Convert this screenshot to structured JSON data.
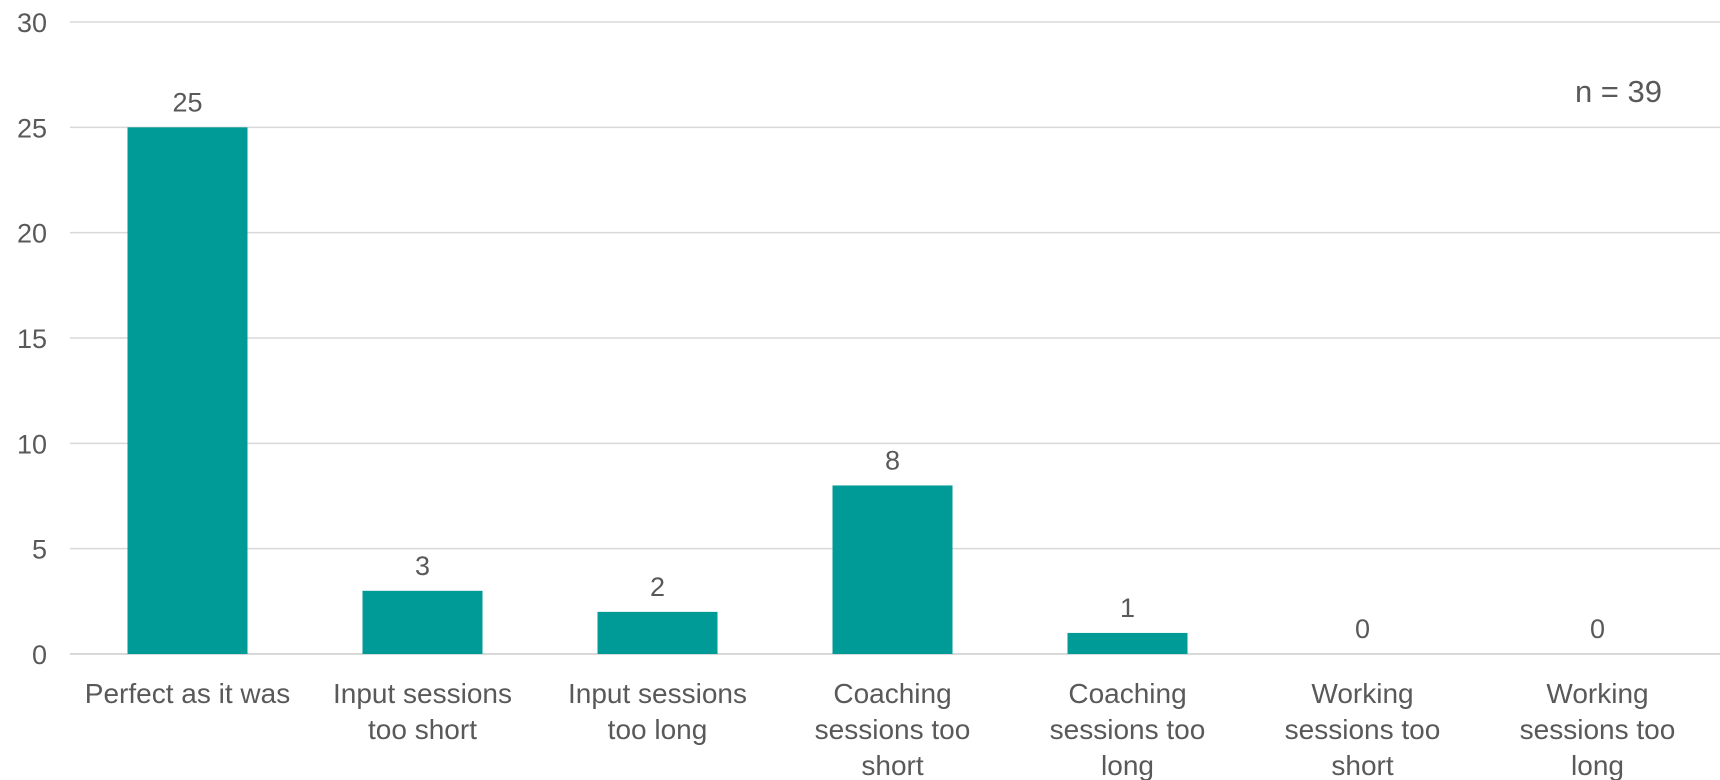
{
  "chart_data": {
    "type": "bar",
    "title": "",
    "xlabel": "",
    "ylabel": "",
    "categories": [
      "Perfect as it was",
      "Input sessions too short",
      "Input sessions too long",
      "Coaching sessions too short",
      "Coaching sessions too long",
      "Working sessions too short",
      "Working sessions too long"
    ],
    "category_lines": [
      [
        "Perfect as it was"
      ],
      [
        "Input sessions",
        "too short"
      ],
      [
        "Input sessions",
        "too long"
      ],
      [
        "Coaching",
        "sessions too",
        "short"
      ],
      [
        "Coaching",
        "sessions too",
        "long"
      ],
      [
        "Working",
        "sessions too",
        "short"
      ],
      [
        "Working",
        "sessions too",
        "long"
      ]
    ],
    "values": [
      25,
      3,
      2,
      8,
      1,
      0,
      0
    ],
    "ylim": [
      0,
      30
    ],
    "yticks": [
      0,
      5,
      10,
      15,
      20,
      25,
      30
    ],
    "grid": true,
    "legend": "none",
    "data_labels": true,
    "bar_color": "#009a97",
    "annotation": "n = 39"
  }
}
